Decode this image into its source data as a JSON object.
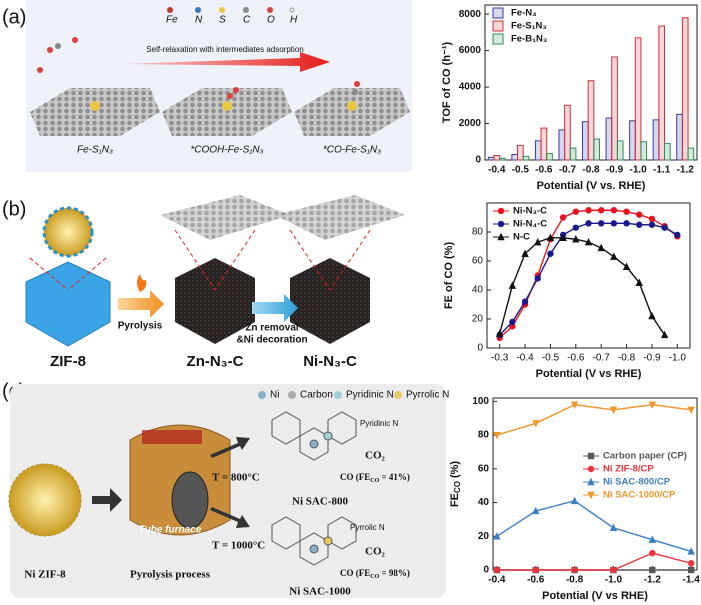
{
  "figure": {
    "panel_labels": [
      "(a)",
      "(b)",
      "(c)"
    ],
    "a": {
      "elements": [
        "Fe",
        "N",
        "S",
        "C",
        "O",
        "H"
      ],
      "arrow_label": "Self-relaxation with intermediates adsorption",
      "structures": [
        "Fe-S₁N₃",
        "*COOH-Fe-S₁N₃",
        "*CO-Fe-S₁N₃"
      ]
    },
    "b": {
      "precursor": "ZIF-8",
      "step1": "Pyrolysis",
      "intermediate": "Zn-N₃-C",
      "step2a": "Zn removal",
      "step2b": "&Ni decoration",
      "product": "Ni-N₃-C"
    },
    "c": {
      "atoms": [
        "Ni",
        "Carbon",
        "Pyridinic N",
        "Pyrrolic N"
      ],
      "precursor": "Ni ZIF-8",
      "process": "Pyrolysis process",
      "furnace": "Tube furnace",
      "temp1": "T = 800°C",
      "temp2": "T = 1000°C",
      "site1": "Pyridinic N",
      "co2_1": "CO₂",
      "fe1": {
        "pre": "CO (FE",
        "sub": "CO",
        "post": " = 41%)"
      },
      "product1": "Ni SAC-800",
      "site2": "Pyrrolic N",
      "co2_2": "CO₂",
      "fe2": {
        "pre": "CO (FE",
        "sub": "CO",
        "post": " = 98%)"
      },
      "product2": "Ni SAC-1000"
    }
  },
  "chart_data": [
    {
      "type": "bar",
      "xlabel": "Potential (V vs. RHE)",
      "ylabel": "TOF of CO (h⁻¹)",
      "categories": [
        "-0.4",
        "-0.5",
        "-0.6",
        "-0.7",
        "-0.8",
        "-0.9",
        "-1.0",
        "-1.1",
        "-1.2"
      ],
      "ylim": [
        0,
        8500
      ],
      "yticks": [
        0,
        2000,
        4000,
        6000,
        8000
      ],
      "legend": "upper left",
      "series": [
        {
          "name": "Fe-N₄",
          "color": "#3a3aa0",
          "values": [
            150,
            300,
            1050,
            1650,
            2100,
            2300,
            2150,
            2200,
            2500
          ]
        },
        {
          "name": "Fe-S₁N₃",
          "color": "#d0303a",
          "values": [
            250,
            800,
            1750,
            3000,
            4350,
            5650,
            6700,
            7350,
            7800
          ]
        },
        {
          "name": "Fe-B₁N₃",
          "color": "#2e8b57",
          "values": [
            100,
            200,
            350,
            650,
            1150,
            1050,
            1000,
            900,
            650
          ]
        }
      ]
    },
    {
      "type": "line",
      "xlabel": "Potential (V vs RHE)",
      "ylabel": "FE of CO (%)",
      "x": [
        -0.3,
        -0.35,
        -0.4,
        -0.45,
        -0.5,
        -0.55,
        -0.6,
        -0.65,
        -0.7,
        -0.75,
        -0.8,
        -0.85,
        -0.9,
        -0.95,
        -1.0
      ],
      "xlim": [
        -0.25,
        -1.05
      ],
      "xticks": [
        -0.3,
        -0.4,
        -0.5,
        -0.6,
        -0.7,
        -0.8,
        -0.9,
        {
          "value": -1,
          "label": "-1.0"
        }
      ],
      "ylim": [
        0,
        100
      ],
      "yticks": [
        0,
        20,
        40,
        60,
        80
      ],
      "legend": "upper left",
      "series": [
        {
          "name": "Ni-N₃-C",
          "color": "#e8141c",
          "marker": "circle",
          "values": [
            7,
            15,
            30,
            50,
            75,
            90,
            94,
            95,
            95,
            95,
            94,
            92,
            89,
            84,
            77
          ]
        },
        {
          "name": "Ni-N₄-C",
          "color": "#1a1a8c",
          "marker": "circle",
          "values": [
            9,
            18,
            32,
            48,
            65,
            78,
            83,
            86,
            86,
            86,
            86,
            85,
            85,
            83,
            78
          ]
        },
        {
          "name": "N-C",
          "color": "#111111",
          "marker": "triangle",
          "values": [
            10,
            43,
            65,
            73,
            76,
            76,
            75,
            73,
            69,
            63,
            56,
            45,
            22,
            9,
            null
          ]
        }
      ]
    },
    {
      "type": "line",
      "xlabel": "Potential (V vs RHE)",
      "ylabel": {
        "main": "FE",
        "sub": "CO",
        "unit": " (%)"
      },
      "x": [
        -0.4,
        -0.6,
        -0.8,
        -1.0,
        -1.2,
        -1.4
      ],
      "xlim": [
        -0.38,
        -1.43
      ],
      "xticks": [
        -0.4,
        -0.6,
        -0.8,
        {
          "value": -1,
          "label": "-1.0"
        },
        -1.2,
        -1.4
      ],
      "ylim": [
        0,
        102
      ],
      "yticks": [
        0,
        20,
        40,
        60,
        80,
        100
      ],
      "legend": "center right",
      "series": [
        {
          "name": "Carbon paper (CP)",
          "color": "#555555",
          "marker": "square",
          "values": [
            0,
            0,
            0,
            0,
            0,
            0
          ]
        },
        {
          "name": "Ni ZIF-8/CP",
          "color": "#e8343a",
          "marker": "circle",
          "values": [
            0,
            0,
            0,
            0,
            10,
            4
          ]
        },
        {
          "name": "Ni SAC-800/CP",
          "color": "#3a7fc4",
          "marker": "triangle",
          "values": [
            20,
            35,
            41,
            25,
            18,
            11
          ]
        },
        {
          "name": "Ni SAC-1000/CP",
          "color": "#f0962a",
          "marker": "down-triangle",
          "values": [
            80,
            87,
            98,
            95,
            98,
            95
          ]
        }
      ]
    }
  ]
}
